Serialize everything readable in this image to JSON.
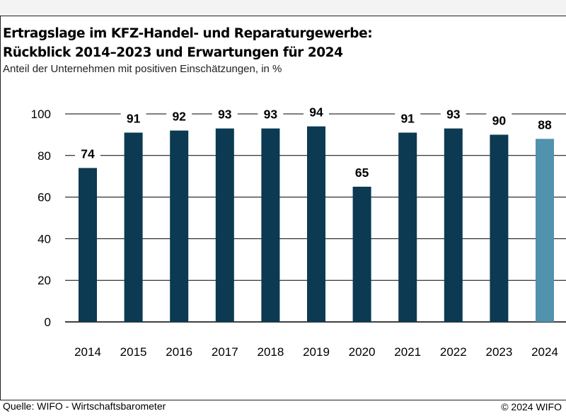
{
  "header": {
    "title_line1": "Ertragslage im KFZ-Handel- und Reparaturgewerbe:",
    "title_line2": "Rückblick 2014–2023 und Erwartungen für 2024",
    "subtitle": "Anteil der Unternehmen mit positiven Einschätzungen, in %"
  },
  "footer": {
    "source": "Quelle: WIFO - Wirtschaftsbarometer",
    "copyright": "© 2024 WIFO"
  },
  "chart_data": {
    "type": "bar",
    "title": "Ertragslage im KFZ-Handel- und Reparaturgewerbe: Rückblick 2014–2023 und Erwartungen für 2024",
    "subtitle": "Anteil der Unternehmen mit positiven Einschätzungen, in %",
    "categories": [
      "2014",
      "2015",
      "2016",
      "2017",
      "2018",
      "2019",
      "2020",
      "2021",
      "2022",
      "2023",
      "2024"
    ],
    "values": [
      74,
      91,
      92,
      93,
      93,
      94,
      65,
      91,
      93,
      90,
      88
    ],
    "data_labels": [
      "74",
      "91",
      "92",
      "93",
      "93",
      "94",
      "65",
      "91",
      "93",
      "90",
      "88"
    ],
    "ylim": [
      0,
      100
    ],
    "yticks": [
      "0",
      "20",
      "40",
      "60",
      "80",
      "100"
    ],
    "grid": true,
    "legend": "none",
    "colors": {
      "bar": "#0b3a52",
      "bar_highlight": "#5192ad",
      "grid": "#000000"
    }
  }
}
